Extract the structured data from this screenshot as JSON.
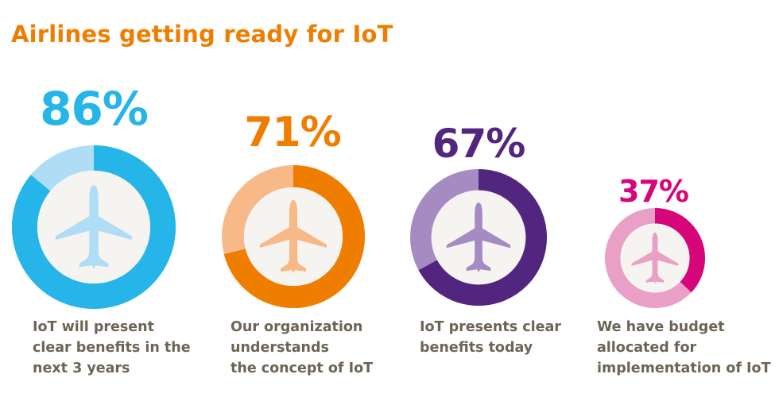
{
  "title": "Airlines getting ready for IoT",
  "colors": {
    "title": "#ef7d00",
    "caption": "#6d6455",
    "center_fill": "#f6f4f1"
  },
  "items": [
    {
      "value_label": "86%",
      "value": 86,
      "color": "#25b5e8",
      "light_color": "#afddf5",
      "icon": "airplane-icon",
      "caption_lines": [
        "IoT will present",
        "clear benefits in the",
        "next 3 years"
      ]
    },
    {
      "value_label": "71%",
      "value": 71,
      "color": "#ef7d00",
      "light_color": "#f7b988",
      "icon": "airplane-icon",
      "caption_lines": [
        "Our organization",
        "understands",
        "the concept of IoT"
      ]
    },
    {
      "value_label": "67%",
      "value": 67,
      "color": "#52267f",
      "light_color": "#a58bc2",
      "icon": "airplane-icon",
      "caption_lines": [
        "IoT presents clear",
        "benefits today"
      ]
    },
    {
      "value_label": "37%",
      "value": 37,
      "color": "#d6057a",
      "light_color": "#eaa0c6",
      "icon": "airplane-icon",
      "caption_lines": [
        "We have budget",
        "allocated for",
        "implementation of IoT"
      ]
    }
  ],
  "chart_data": {
    "type": "pie",
    "title": "Airlines getting ready for IoT",
    "categories": [
      "IoT will present clear benefits in the next 3 years",
      "Our organization understands the concept of IoT",
      "IoT presents clear benefits today",
      "We have budget allocated for implementation of IoT"
    ],
    "values": [
      86,
      71,
      67,
      37
    ],
    "unit": "%",
    "style": "donut (one per category, filled clockwise from 12 o'clock)",
    "xlabel": "",
    "ylabel": "",
    "legend": "none (captions under each donut)"
  }
}
